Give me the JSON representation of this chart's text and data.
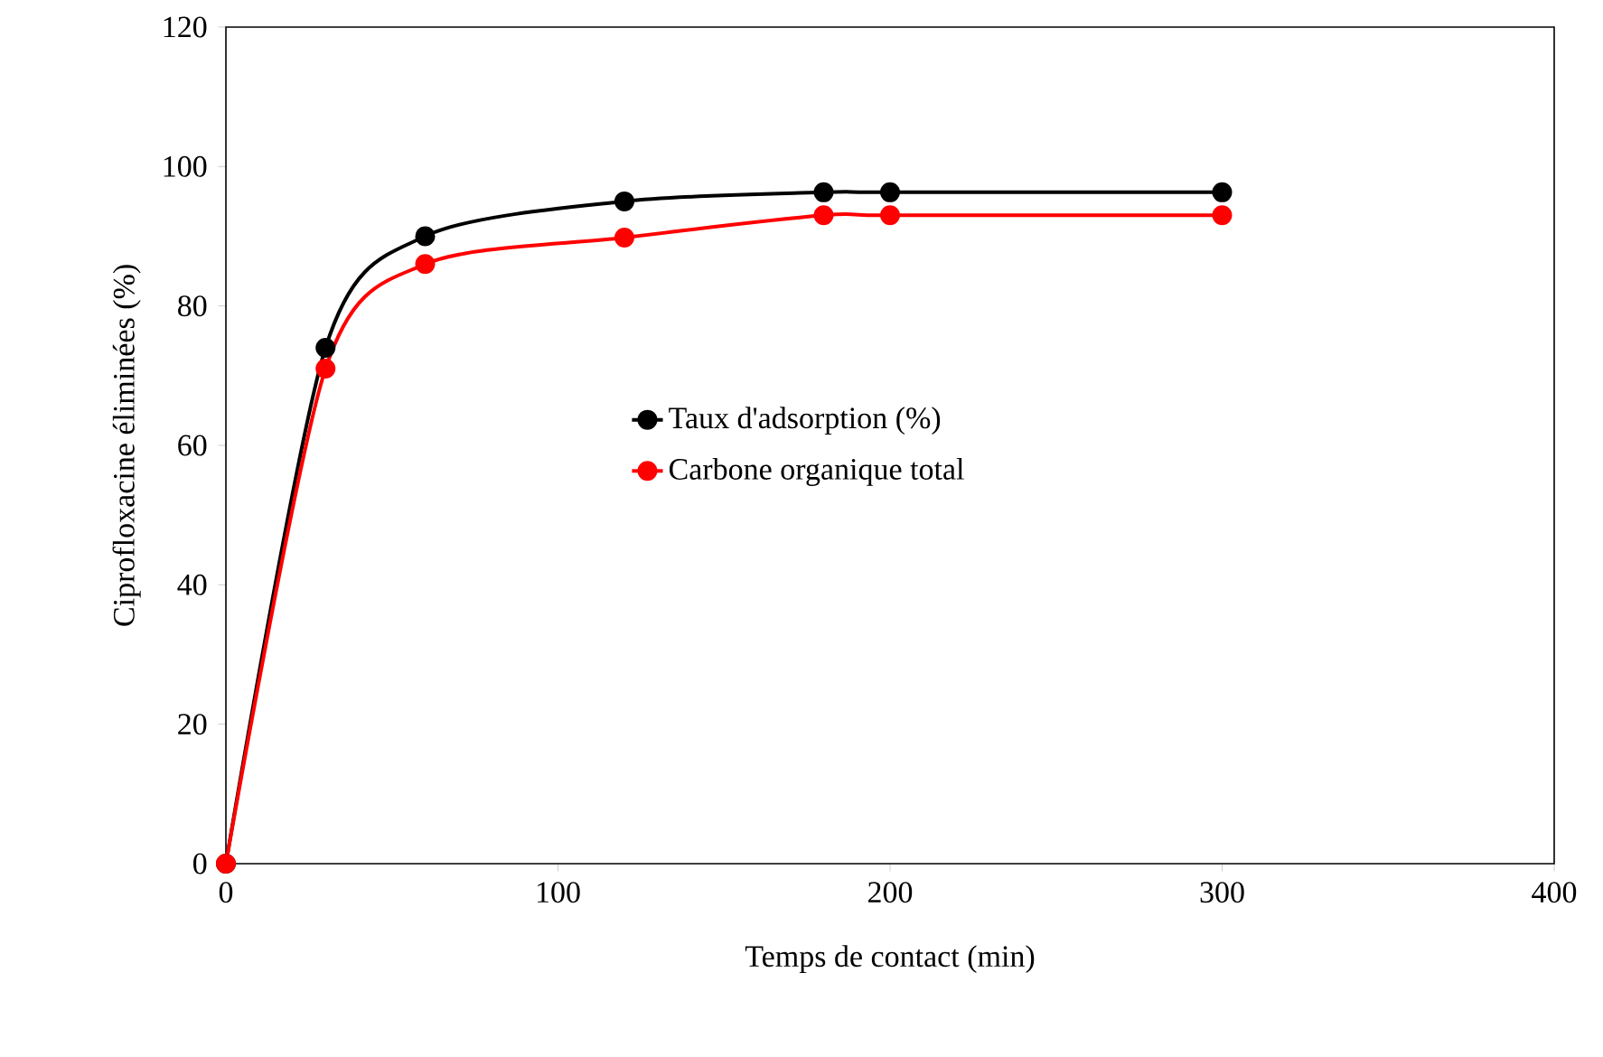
{
  "chart_data": {
    "type": "line",
    "xlabel": "Temps de contact (min)",
    "ylabel": "Ciprofloxacine éliminées (%)",
    "x": [
      0,
      30,
      60,
      120,
      180,
      200,
      300
    ],
    "series": [
      {
        "name": "Taux d'adsorption (%)",
        "color": "#000000",
        "values": [
          0,
          74,
          90,
          95,
          96.3,
          96.3,
          96.3
        ]
      },
      {
        "name": "Carbone organique total",
        "color": "#ff0000",
        "values": [
          0,
          71,
          86,
          89.8,
          93,
          93,
          93
        ]
      }
    ],
    "xlim": [
      0,
      400
    ],
    "xticks": [
      0,
      100,
      200,
      300,
      400
    ],
    "ylim": [
      0,
      120
    ],
    "yticks": [
      0,
      20,
      40,
      60,
      80,
      100,
      120
    ],
    "grid": false,
    "legend": "left",
    "marker": "circle",
    "line_style": "solid"
  }
}
